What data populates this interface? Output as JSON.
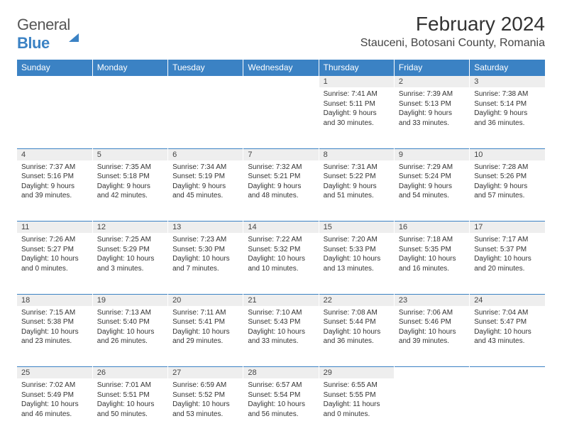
{
  "logo": {
    "word1": "General",
    "word2": "Blue"
  },
  "title": "February 2024",
  "location": "Stauceni, Botosani County, Romania",
  "colors": {
    "header_bg": "#3b82c4",
    "header_text": "#ffffff",
    "daynum_bg": "#eeeeee",
    "border": "#3b82c4",
    "text": "#333333",
    "page_bg": "#ffffff"
  },
  "typography": {
    "title_fontsize": 28,
    "location_fontsize": 16,
    "dayheader_fontsize": 12,
    "daynum_fontsize": 11,
    "cell_fontsize": 10
  },
  "day_headers": [
    "Sunday",
    "Monday",
    "Tuesday",
    "Wednesday",
    "Thursday",
    "Friday",
    "Saturday"
  ],
  "weeks": [
    [
      null,
      null,
      null,
      null,
      {
        "n": "1",
        "sr": "Sunrise: 7:41 AM",
        "ss": "Sunset: 5:11 PM",
        "d1": "Daylight: 9 hours",
        "d2": "and 30 minutes."
      },
      {
        "n": "2",
        "sr": "Sunrise: 7:39 AM",
        "ss": "Sunset: 5:13 PM",
        "d1": "Daylight: 9 hours",
        "d2": "and 33 minutes."
      },
      {
        "n": "3",
        "sr": "Sunrise: 7:38 AM",
        "ss": "Sunset: 5:14 PM",
        "d1": "Daylight: 9 hours",
        "d2": "and 36 minutes."
      }
    ],
    [
      {
        "n": "4",
        "sr": "Sunrise: 7:37 AM",
        "ss": "Sunset: 5:16 PM",
        "d1": "Daylight: 9 hours",
        "d2": "and 39 minutes."
      },
      {
        "n": "5",
        "sr": "Sunrise: 7:35 AM",
        "ss": "Sunset: 5:18 PM",
        "d1": "Daylight: 9 hours",
        "d2": "and 42 minutes."
      },
      {
        "n": "6",
        "sr": "Sunrise: 7:34 AM",
        "ss": "Sunset: 5:19 PM",
        "d1": "Daylight: 9 hours",
        "d2": "and 45 minutes."
      },
      {
        "n": "7",
        "sr": "Sunrise: 7:32 AM",
        "ss": "Sunset: 5:21 PM",
        "d1": "Daylight: 9 hours",
        "d2": "and 48 minutes."
      },
      {
        "n": "8",
        "sr": "Sunrise: 7:31 AM",
        "ss": "Sunset: 5:22 PM",
        "d1": "Daylight: 9 hours",
        "d2": "and 51 minutes."
      },
      {
        "n": "9",
        "sr": "Sunrise: 7:29 AM",
        "ss": "Sunset: 5:24 PM",
        "d1": "Daylight: 9 hours",
        "d2": "and 54 minutes."
      },
      {
        "n": "10",
        "sr": "Sunrise: 7:28 AM",
        "ss": "Sunset: 5:26 PM",
        "d1": "Daylight: 9 hours",
        "d2": "and 57 minutes."
      }
    ],
    [
      {
        "n": "11",
        "sr": "Sunrise: 7:26 AM",
        "ss": "Sunset: 5:27 PM",
        "d1": "Daylight: 10 hours",
        "d2": "and 0 minutes."
      },
      {
        "n": "12",
        "sr": "Sunrise: 7:25 AM",
        "ss": "Sunset: 5:29 PM",
        "d1": "Daylight: 10 hours",
        "d2": "and 3 minutes."
      },
      {
        "n": "13",
        "sr": "Sunrise: 7:23 AM",
        "ss": "Sunset: 5:30 PM",
        "d1": "Daylight: 10 hours",
        "d2": "and 7 minutes."
      },
      {
        "n": "14",
        "sr": "Sunrise: 7:22 AM",
        "ss": "Sunset: 5:32 PM",
        "d1": "Daylight: 10 hours",
        "d2": "and 10 minutes."
      },
      {
        "n": "15",
        "sr": "Sunrise: 7:20 AM",
        "ss": "Sunset: 5:33 PM",
        "d1": "Daylight: 10 hours",
        "d2": "and 13 minutes."
      },
      {
        "n": "16",
        "sr": "Sunrise: 7:18 AM",
        "ss": "Sunset: 5:35 PM",
        "d1": "Daylight: 10 hours",
        "d2": "and 16 minutes."
      },
      {
        "n": "17",
        "sr": "Sunrise: 7:17 AM",
        "ss": "Sunset: 5:37 PM",
        "d1": "Daylight: 10 hours",
        "d2": "and 20 minutes."
      }
    ],
    [
      {
        "n": "18",
        "sr": "Sunrise: 7:15 AM",
        "ss": "Sunset: 5:38 PM",
        "d1": "Daylight: 10 hours",
        "d2": "and 23 minutes."
      },
      {
        "n": "19",
        "sr": "Sunrise: 7:13 AM",
        "ss": "Sunset: 5:40 PM",
        "d1": "Daylight: 10 hours",
        "d2": "and 26 minutes."
      },
      {
        "n": "20",
        "sr": "Sunrise: 7:11 AM",
        "ss": "Sunset: 5:41 PM",
        "d1": "Daylight: 10 hours",
        "d2": "and 29 minutes."
      },
      {
        "n": "21",
        "sr": "Sunrise: 7:10 AM",
        "ss": "Sunset: 5:43 PM",
        "d1": "Daylight: 10 hours",
        "d2": "and 33 minutes."
      },
      {
        "n": "22",
        "sr": "Sunrise: 7:08 AM",
        "ss": "Sunset: 5:44 PM",
        "d1": "Daylight: 10 hours",
        "d2": "and 36 minutes."
      },
      {
        "n": "23",
        "sr": "Sunrise: 7:06 AM",
        "ss": "Sunset: 5:46 PM",
        "d1": "Daylight: 10 hours",
        "d2": "and 39 minutes."
      },
      {
        "n": "24",
        "sr": "Sunrise: 7:04 AM",
        "ss": "Sunset: 5:47 PM",
        "d1": "Daylight: 10 hours",
        "d2": "and 43 minutes."
      }
    ],
    [
      {
        "n": "25",
        "sr": "Sunrise: 7:02 AM",
        "ss": "Sunset: 5:49 PM",
        "d1": "Daylight: 10 hours",
        "d2": "and 46 minutes."
      },
      {
        "n": "26",
        "sr": "Sunrise: 7:01 AM",
        "ss": "Sunset: 5:51 PM",
        "d1": "Daylight: 10 hours",
        "d2": "and 50 minutes."
      },
      {
        "n": "27",
        "sr": "Sunrise: 6:59 AM",
        "ss": "Sunset: 5:52 PM",
        "d1": "Daylight: 10 hours",
        "d2": "and 53 minutes."
      },
      {
        "n": "28",
        "sr": "Sunrise: 6:57 AM",
        "ss": "Sunset: 5:54 PM",
        "d1": "Daylight: 10 hours",
        "d2": "and 56 minutes."
      },
      {
        "n": "29",
        "sr": "Sunrise: 6:55 AM",
        "ss": "Sunset: 5:55 PM",
        "d1": "Daylight: 11 hours",
        "d2": "and 0 minutes."
      },
      null,
      null
    ]
  ]
}
